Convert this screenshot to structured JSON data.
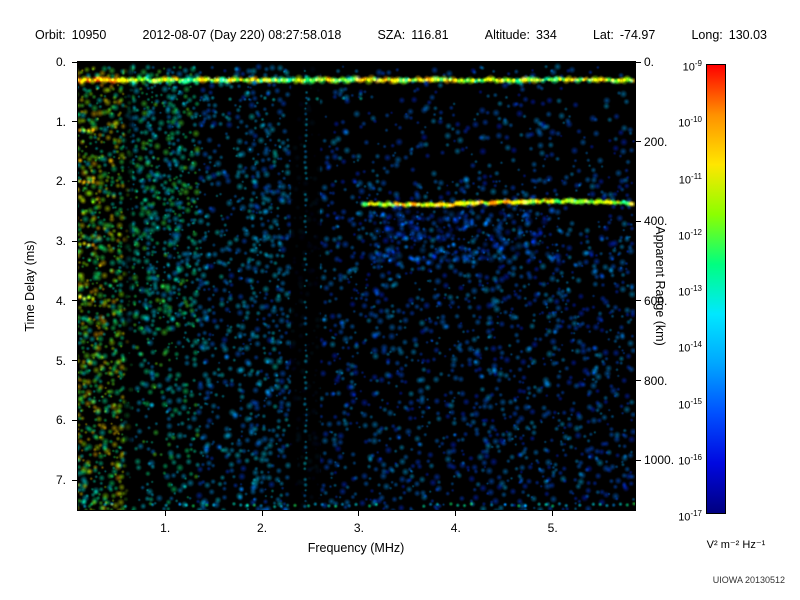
{
  "header": {
    "fields": [
      {
        "label": "Orbit:",
        "value": "10950"
      },
      {
        "label": "",
        "value": "2012-08-07 (Day 220) 08:27:58.018"
      },
      {
        "label": "SZA:",
        "value": "116.81"
      },
      {
        "label": "Altitude:",
        "value": "334"
      },
      {
        "label": "Lat:",
        "value": "-74.97"
      },
      {
        "label": "Long:",
        "value": "130.03"
      }
    ]
  },
  "footer": {
    "credit": "UIOWA 20130512"
  },
  "chart_data": {
    "type": "heatmap",
    "xlabel": "Frequency (MHz)",
    "x_range": [
      0.1,
      5.85
    ],
    "x_ticks": [
      1,
      2,
      3,
      4,
      5
    ],
    "x_tick_labels": [
      "1.",
      "2.",
      "3.",
      "4.",
      "5."
    ],
    "ylabel_left": "Time Delay (ms)",
    "y_range_ms": [
      0,
      7.5
    ],
    "y_ticks_ms": [
      0,
      1,
      2,
      3,
      4,
      5,
      6,
      7
    ],
    "y_tick_labels_left": [
      "0.",
      "1.",
      "2.",
      "3.",
      "4.",
      "5.",
      "6.",
      "7."
    ],
    "ylabel_right": "Apparent Range (km)",
    "y_ticks_km": [
      0,
      200,
      400,
      600,
      800,
      1000
    ],
    "y_tick_labels_right": [
      "0.",
      "200.",
      "400.",
      "600.",
      "800.",
      "1000."
    ],
    "km_per_ms": 150,
    "grid": false,
    "background_color": "#000000",
    "colorbar": {
      "unit": "V² m⁻² Hz⁻¹",
      "scale": "log",
      "top_value": "1e-9",
      "bottom_value": "1e-17",
      "ticks": [
        {
          "mantissa": "10",
          "exponent": "-9"
        },
        {
          "mantissa": "10",
          "exponent": "-10"
        },
        {
          "mantissa": "10",
          "exponent": "-11"
        },
        {
          "mantissa": "10",
          "exponent": "-12"
        },
        {
          "mantissa": "10",
          "exponent": "-13"
        },
        {
          "mantissa": "10",
          "exponent": "-14"
        },
        {
          "mantissa": "10",
          "exponent": "-15"
        },
        {
          "mantissa": "10",
          "exponent": "-16"
        },
        {
          "mantissa": "10",
          "exponent": "-17"
        }
      ],
      "colors_top_to_bottom": [
        "#ff0000",
        "#ff9100",
        "#ffe600",
        "#8cff00",
        "#00ff80",
        "#00e8ff",
        "#00a6ff",
        "#0050ff",
        "#0008e0",
        "#000080"
      ]
    },
    "annotations": [
      {
        "name": "ionospheric-noise-band",
        "t_ms": 0.3,
        "f_mhz": [
          0.1,
          5.85
        ]
      },
      {
        "name": "surface-reflection-trace",
        "t_ms": 2.36,
        "f_mhz": [
          3.05,
          5.85
        ],
        "apparent_range_km": 350
      },
      {
        "name": "low-frequency-broadband-noise",
        "f_mhz": [
          0.1,
          1.35
        ],
        "t_ms": [
          0,
          7.5
        ]
      },
      {
        "name": "interference-gap-dark-column",
        "f_mhz": [
          2.3,
          2.6
        ]
      },
      {
        "name": "faint-vertical-interference-line",
        "f_mhz": 2.45
      }
    ],
    "features": {
      "seed": 42,
      "low_freq_noise": {
        "f_max": 1.35,
        "bright_f_max": 0.6
      },
      "secondary_gap": {
        "f_start": 0.58,
        "f_end": 0.66
      },
      "ionosphere_band": {
        "t_ms": 0.3,
        "intensity": [
          0.5,
          0.9
        ]
      },
      "second_band_dashes": {
        "t_ms": 0.62,
        "f_start": 1.4,
        "f_end": 3.2,
        "intensity": 0.35
      },
      "surface_echo": {
        "t_ms": 2.36,
        "f_start": 3.05,
        "f_end": 5.85,
        "intensity": [
          0.55,
          0.85
        ]
      },
      "dark_column": {
        "f_start": 2.3,
        "f_end": 2.6
      },
      "vertical_line": {
        "f_mhz": 2.45,
        "intensity": 0.3
      },
      "left_edge_markers_t_ms": [
        1.15,
        2.0,
        3.05,
        3.95
      ],
      "bottom_row_t_ms": 7.42
    }
  }
}
